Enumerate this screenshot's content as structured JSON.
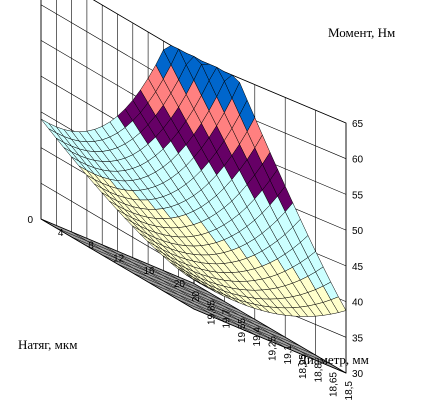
{
  "chart_data": {
    "type": "surface",
    "z_axis": {
      "title": "Момент, Нм",
      "ticks": [
        "30",
        "35",
        "40",
        "45",
        "50",
        "55",
        "60",
        "65"
      ],
      "range": [
        30,
        65
      ]
    },
    "y_axis": {
      "title": "Натяг, мкм",
      "ticks": [
        "0",
        "4",
        "8",
        "12",
        "16",
        "20"
      ],
      "range": [
        0,
        20
      ]
    },
    "x_axis": {
      "title": "Диаметр, мм",
      "ticks": [
        "20",
        "19,85",
        "19,7",
        "19,55",
        "19,4",
        "19,25",
        "19,1",
        "18,95",
        "18,8",
        "18,65",
        "18,5"
      ],
      "range": [
        20,
        18.5
      ]
    },
    "legend_bands": [
      {
        "range": [
          30,
          35
        ],
        "color": "#ffffcc"
      },
      {
        "range": [
          35,
          40
        ],
        "color": "#ffffcc"
      },
      {
        "range": [
          40,
          45
        ],
        "color": "#ccffff"
      },
      {
        "range": [
          45,
          50
        ],
        "color": "#ccffff"
      },
      {
        "range": [
          50,
          55
        ],
        "color": "#660066"
      },
      {
        "range": [
          55,
          60
        ],
        "color": "#ff8080"
      },
      {
        "range": [
          60,
          65
        ],
        "color": "#0066cc"
      }
    ],
    "grid": true,
    "floor_color": "#a0a0a0"
  }
}
